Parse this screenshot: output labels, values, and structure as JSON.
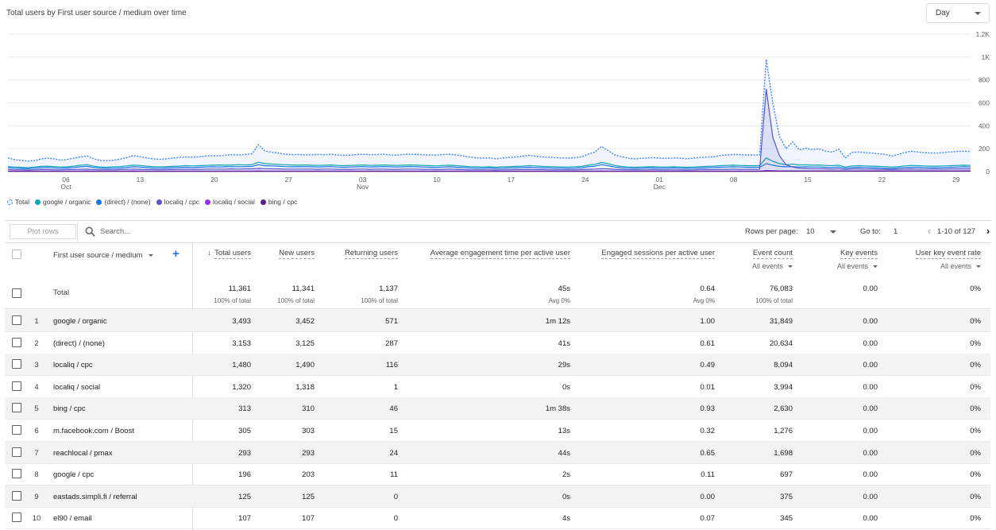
{
  "chart": {
    "title": "Total users by First user source / medium over time",
    "period": "Day"
  },
  "chart_data": {
    "type": "line",
    "y_ticks": [
      "1.2K",
      "1K",
      "800",
      "600",
      "400",
      "200",
      "0"
    ],
    "ylim": [
      0,
      1200
    ],
    "x_ticks": [
      {
        "day": "06",
        "month": "Oct"
      },
      {
        "day": "13",
        "month": ""
      },
      {
        "day": "20",
        "month": ""
      },
      {
        "day": "27",
        "month": ""
      },
      {
        "day": "03",
        "month": "Nov"
      },
      {
        "day": "10",
        "month": ""
      },
      {
        "day": "17",
        "month": ""
      },
      {
        "day": "24",
        "month": ""
      },
      {
        "day": "01",
        "month": "Dec"
      },
      {
        "day": "08",
        "month": ""
      },
      {
        "day": "15",
        "month": ""
      },
      {
        "day": "22",
        "month": ""
      },
      {
        "day": "29",
        "month": ""
      }
    ],
    "series": [
      {
        "name": "Total",
        "color": "#4285f4",
        "style": "dashed-area",
        "values": [
          120,
          105,
          98,
          92,
          96,
          110,
          118,
          112,
          100,
          106,
          118,
          128,
          138,
          112,
          98,
          96,
          100,
          108,
          122,
          140,
          132,
          120,
          112,
          108,
          112,
          118,
          124,
          128,
          126,
          130,
          136,
          140,
          138,
          144,
          148,
          146,
          150,
          156,
          236,
          180,
          170,
          162,
          152,
          148,
          150,
          146,
          148,
          150,
          148,
          152,
          146,
          142,
          144,
          150,
          152,
          148,
          150,
          152,
          146,
          144,
          150,
          152,
          150,
          148,
          146,
          144,
          150,
          152,
          146,
          138,
          128,
          120,
          118,
          120,
          112,
          118,
          124,
          128,
          134,
          142,
          136,
          130,
          126,
          122,
          120,
          118,
          122,
          130,
          152,
          170,
          220,
          186,
          148,
          132,
          118,
          112,
          116,
          120,
          122,
          118,
          116,
          120,
          118,
          112,
          118,
          124,
          128,
          130,
          140,
          146,
          150,
          148,
          146,
          146,
          146,
          980,
          600,
          310,
          200,
          260,
          190,
          204,
          192,
          200,
          180,
          170,
          196,
          120,
          168,
          172,
          166,
          162,
          156,
          152,
          136,
          150,
          168,
          178,
          172,
          166,
          164,
          162,
          168,
          172,
          176,
          178,
          176
        ]
      },
      {
        "name": "google / organic",
        "color": "#12a4af",
        "style": "line",
        "values": [
          44,
          40,
          38,
          34,
          40,
          46,
          48,
          44,
          40,
          42,
          48,
          56,
          60,
          48,
          40,
          38,
          42,
          44,
          50,
          56,
          54,
          48,
          44,
          42,
          44,
          46,
          48,
          52,
          50,
          52,
          54,
          56,
          58,
          56,
          58,
          60,
          58,
          62,
          82,
          70,
          66,
          64,
          60,
          58,
          56,
          58,
          56,
          54,
          56,
          58,
          54,
          52,
          54,
          56,
          58,
          54,
          56,
          58,
          56,
          54,
          56,
          58,
          56,
          54,
          52,
          50,
          54,
          56,
          52,
          48,
          44,
          42,
          40,
          42,
          38,
          42,
          44,
          46,
          48,
          52,
          50,
          46,
          44,
          42,
          40,
          40,
          42,
          46,
          56,
          64,
          80,
          70,
          54,
          46,
          40,
          38,
          40,
          42,
          44,
          40,
          40,
          42,
          40,
          38,
          40,
          44,
          46,
          48,
          52,
          54,
          56,
          54,
          52,
          52,
          52,
          120,
          90,
          70,
          60,
          66,
          58,
          60,
          56,
          58,
          54,
          52,
          56,
          40,
          50,
          52,
          50,
          48,
          46,
          44,
          40,
          44,
          50,
          54,
          52,
          50,
          48,
          48,
          50,
          52,
          54,
          56,
          54
        ]
      },
      {
        "name": "(direct) / (none)",
        "color": "#1a73e8",
        "style": "line",
        "values": [
          34,
          30,
          28,
          26,
          30,
          34,
          36,
          32,
          30,
          32,
          36,
          42,
          46,
          36,
          30,
          28,
          30,
          32,
          36,
          42,
          40,
          36,
          32,
          30,
          32,
          34,
          36,
          38,
          36,
          38,
          40,
          42,
          40,
          42,
          44,
          42,
          44,
          46,
          60,
          52,
          50,
          48,
          44,
          42,
          42,
          44,
          42,
          40,
          42,
          44,
          40,
          38,
          40,
          42,
          44,
          40,
          42,
          44,
          42,
          40,
          42,
          44,
          42,
          40,
          38,
          36,
          40,
          42,
          38,
          36,
          32,
          30,
          30,
          32,
          28,
          30,
          32,
          34,
          36,
          38,
          36,
          34,
          32,
          30,
          30,
          28,
          30,
          34,
          42,
          48,
          60,
          52,
          40,
          34,
          30,
          28,
          30,
          32,
          32,
          30,
          30,
          32,
          30,
          28,
          30,
          32,
          34,
          36,
          38,
          40,
          42,
          40,
          38,
          38,
          38,
          70,
          56,
          46,
          42,
          44,
          40,
          42,
          40,
          40,
          38,
          36,
          40,
          30,
          36,
          38,
          36,
          34,
          32,
          30,
          28,
          32,
          36,
          38,
          38,
          36,
          34,
          34,
          36,
          38,
          40,
          42,
          40
        ]
      },
      {
        "name": "localiq / cpc",
        "color": "#5c55c9",
        "style": "line-area",
        "values": [
          18,
          16,
          16,
          14,
          16,
          18,
          18,
          16,
          16,
          18,
          18,
          20,
          22,
          18,
          16,
          16,
          16,
          18,
          20,
          22,
          20,
          18,
          18,
          16,
          18,
          18,
          20,
          20,
          20,
          20,
          22,
          22,
          22,
          22,
          24,
          22,
          24,
          24,
          28,
          26,
          24,
          24,
          22,
          22,
          22,
          22,
          22,
          20,
          22,
          22,
          20,
          20,
          20,
          22,
          22,
          20,
          22,
          22,
          20,
          20,
          22,
          22,
          22,
          20,
          20,
          18,
          20,
          22,
          20,
          18,
          16,
          16,
          16,
          16,
          14,
          16,
          16,
          18,
          18,
          20,
          18,
          18,
          16,
          16,
          16,
          16,
          16,
          18,
          20,
          22,
          26,
          24,
          20,
          18,
          16,
          16,
          16,
          16,
          18,
          16,
          16,
          16,
          16,
          14,
          16,
          18,
          18,
          18,
          20,
          20,
          22,
          20,
          20,
          20,
          20,
          720,
          300,
          140,
          60,
          40,
          30,
          28,
          26,
          26,
          24,
          22,
          26,
          18,
          24,
          24,
          22,
          22,
          20,
          20,
          18,
          20,
          22,
          24,
          22,
          22,
          22,
          22,
          22,
          24,
          24,
          24,
          24
        ]
      },
      {
        "name": "localiq / social",
        "color": "#9334e6",
        "style": "line",
        "values": [
          4,
          4,
          4,
          4,
          4,
          4,
          4,
          4,
          4,
          4,
          4,
          4,
          6,
          4,
          4,
          4,
          4,
          4,
          4,
          6,
          4,
          4,
          4,
          4,
          4,
          4,
          4,
          4,
          4,
          4,
          4,
          4,
          4,
          4,
          4,
          4,
          4,
          4,
          6,
          4,
          4,
          4,
          4,
          4,
          4,
          4,
          4,
          4,
          4,
          4,
          4,
          4,
          4,
          4,
          4,
          4,
          4,
          4,
          4,
          4,
          4,
          4,
          4,
          4,
          4,
          4,
          4,
          4,
          4,
          4,
          4,
          4,
          4,
          4,
          4,
          4,
          4,
          4,
          4,
          4,
          4,
          4,
          4,
          4,
          4,
          4,
          4,
          4,
          4,
          4,
          6,
          4,
          4,
          4,
          4,
          4,
          4,
          4,
          4,
          4,
          4,
          4,
          4,
          4,
          4,
          4,
          4,
          4,
          4,
          4,
          4,
          4,
          4,
          4,
          4,
          10,
          8,
          6,
          6,
          6,
          6,
          6,
          6,
          6,
          6,
          6,
          6,
          4,
          6,
          6,
          6,
          6,
          6,
          6,
          6,
          6,
          6,
          6,
          6,
          6,
          6,
          6,
          6,
          6,
          6,
          6,
          6
        ]
      },
      {
        "name": "bing / cpc",
        "color": "#5f1f8a",
        "style": "line",
        "values": [
          2,
          2,
          2,
          2,
          2,
          2,
          2,
          2,
          2,
          2,
          2,
          2,
          2,
          2,
          2,
          2,
          2,
          2,
          2,
          2,
          2,
          2,
          2,
          2,
          2,
          2,
          2,
          2,
          2,
          2,
          2,
          2,
          2,
          2,
          2,
          2,
          2,
          2,
          2,
          2,
          2,
          2,
          2,
          2,
          2,
          2,
          2,
          2,
          2,
          2,
          2,
          2,
          2,
          2,
          2,
          2,
          2,
          2,
          2,
          2,
          2,
          2,
          2,
          2,
          2,
          2,
          2,
          2,
          2,
          2,
          2,
          2,
          2,
          2,
          2,
          2,
          2,
          2,
          2,
          2,
          2,
          2,
          2,
          2,
          2,
          2,
          2,
          2,
          2,
          2,
          2,
          2,
          2,
          2,
          2,
          2,
          2,
          2,
          2,
          2,
          2,
          2,
          2,
          2,
          2,
          2,
          2,
          2,
          2,
          2,
          2,
          2,
          2,
          2,
          2,
          4,
          4,
          4,
          4,
          4,
          4,
          4,
          4,
          4,
          4,
          4,
          4,
          4,
          4,
          4,
          4,
          4,
          4,
          4,
          4,
          4,
          4,
          4,
          4,
          4,
          4,
          4,
          4,
          4,
          4,
          4,
          4
        ]
      }
    ]
  },
  "legend": [
    {
      "label": "Total",
      "color": "#4285f4",
      "outline": true
    },
    {
      "label": "google / organic",
      "color": "#12a4af"
    },
    {
      "label": "(direct) / (none)",
      "color": "#1a73e8"
    },
    {
      "label": "localiq / cpc",
      "color": "#5c55c9"
    },
    {
      "label": "localiq / social",
      "color": "#9334e6"
    },
    {
      "label": "bing / cpc",
      "color": "#5f1f8a"
    }
  ],
  "toolbar": {
    "plot_rows": "Plot rows",
    "search_placeholder": "Search...",
    "rows_per_page_label": "Rows per page:",
    "rows_per_page": "10",
    "goto_label": "Go to:",
    "goto_value": "1",
    "page_range": "1-10 of 127"
  },
  "table": {
    "dimension_header": "First user source / medium",
    "columns": [
      {
        "label": "Total users",
        "sub": "",
        "sorted": true
      },
      {
        "label": "New users",
        "sub": ""
      },
      {
        "label": "Returning users",
        "sub": ""
      },
      {
        "label": "Average engagement time per active user",
        "sub": ""
      },
      {
        "label": "Engaged sessions per active user",
        "sub": ""
      },
      {
        "label": "Event count",
        "sub": "All events"
      },
      {
        "label": "Key events",
        "sub": "All events"
      },
      {
        "label": "User key event rate",
        "sub": "All events"
      }
    ],
    "totals": {
      "label": "Total",
      "values": [
        "11,361",
        "11,341",
        "1,137",
        "45s",
        "0.64",
        "76,083",
        "0.00",
        "0%"
      ],
      "subs": [
        "100% of total",
        "100% of total",
        "100% of total",
        "Avg 0%",
        "Avg 0%",
        "100% of total",
        "",
        ""
      ]
    },
    "rows": [
      {
        "num": "1",
        "dim": "google / organic",
        "values": [
          "3,493",
          "3,452",
          "571",
          "1m 12s",
          "1.00",
          "31,849",
          "0.00",
          "0%"
        ]
      },
      {
        "num": "2",
        "dim": "(direct) / (none)",
        "values": [
          "3,153",
          "3,125",
          "287",
          "41s",
          "0.61",
          "20,634",
          "0.00",
          "0%"
        ]
      },
      {
        "num": "3",
        "dim": "localiq / cpc",
        "values": [
          "1,480",
          "1,490",
          "116",
          "29s",
          "0.49",
          "8,094",
          "0.00",
          "0%"
        ]
      },
      {
        "num": "4",
        "dim": "localiq / social",
        "values": [
          "1,320",
          "1,318",
          "1",
          "0s",
          "0.01",
          "3,994",
          "0.00",
          "0%"
        ]
      },
      {
        "num": "5",
        "dim": "bing / cpc",
        "values": [
          "313",
          "310",
          "46",
          "1m 38s",
          "0.93",
          "2,630",
          "0.00",
          "0%"
        ]
      },
      {
        "num": "6",
        "dim": "m.facebook.com / Boost",
        "values": [
          "305",
          "303",
          "15",
          "13s",
          "0.32",
          "1,276",
          "0.00",
          "0%"
        ]
      },
      {
        "num": "7",
        "dim": "reachlocal / pmax",
        "values": [
          "293",
          "293",
          "24",
          "44s",
          "0.65",
          "1,698",
          "0.00",
          "0%"
        ]
      },
      {
        "num": "8",
        "dim": "google / cpc",
        "values": [
          "196",
          "203",
          "11",
          "2s",
          "0.11",
          "697",
          "0.00",
          "0%"
        ]
      },
      {
        "num": "9",
        "dim": "eastads.simpli.fi / referral",
        "values": [
          "125",
          "125",
          "0",
          "0s",
          "0.00",
          "375",
          "0.00",
          "0%"
        ]
      },
      {
        "num": "10",
        "dim": "el90 / email",
        "values": [
          "107",
          "107",
          "0",
          "4s",
          "0.07",
          "345",
          "0.00",
          "0%"
        ]
      }
    ]
  }
}
